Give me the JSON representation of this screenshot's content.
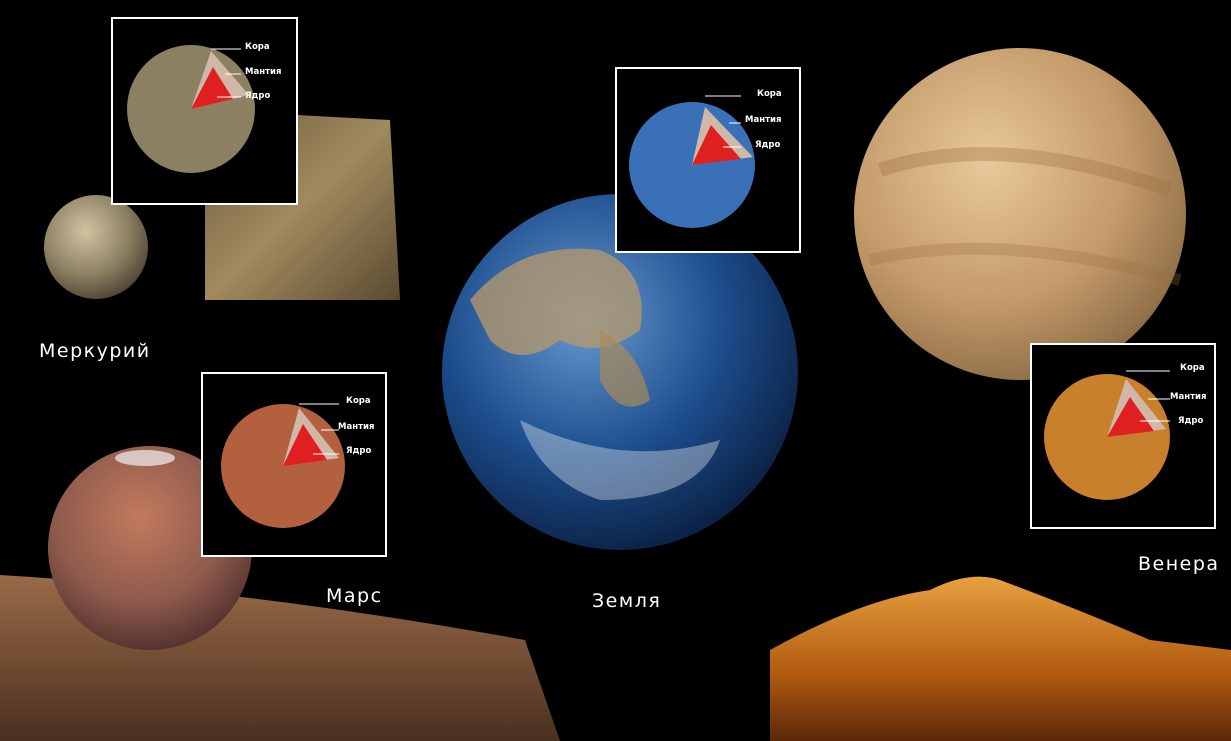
{
  "planets": {
    "mercury": {
      "name": "Меркурий"
    },
    "mars": {
      "name": "Марс"
    },
    "earth": {
      "name": "Земля"
    },
    "venus": {
      "name": "Венера"
    }
  },
  "layers": {
    "crust": "Кора",
    "mantle": "Мантия",
    "core": "Ядро"
  },
  "colors": {
    "background": "#000000",
    "core": "#e02020",
    "mantle": "#c8a090",
    "crust": "#f0e6df",
    "frame": "#ffffff"
  }
}
